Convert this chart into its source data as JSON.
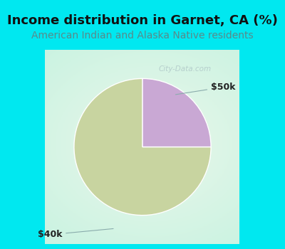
{
  "title": "Income distribution in Garnet, CA (%)",
  "subtitle": "American Indian and Alaska Native residents",
  "slices": [
    75,
    25
  ],
  "labels": [
    "$40k",
    "$50k"
  ],
  "colors": [
    "#c8d4a0",
    "#c9a8d4"
  ],
  "bg_color": "#00e8f0",
  "title_color": "#111111",
  "subtitle_color": "#5a8a8a",
  "title_fontsize": 13,
  "subtitle_fontsize": 10,
  "label_fontsize": 9,
  "startangle": 90,
  "watermark": "City-Data.com",
  "watermark_color": "#b0c8c8",
  "label_color": "#222222",
  "arrow_color": "#8aacac"
}
